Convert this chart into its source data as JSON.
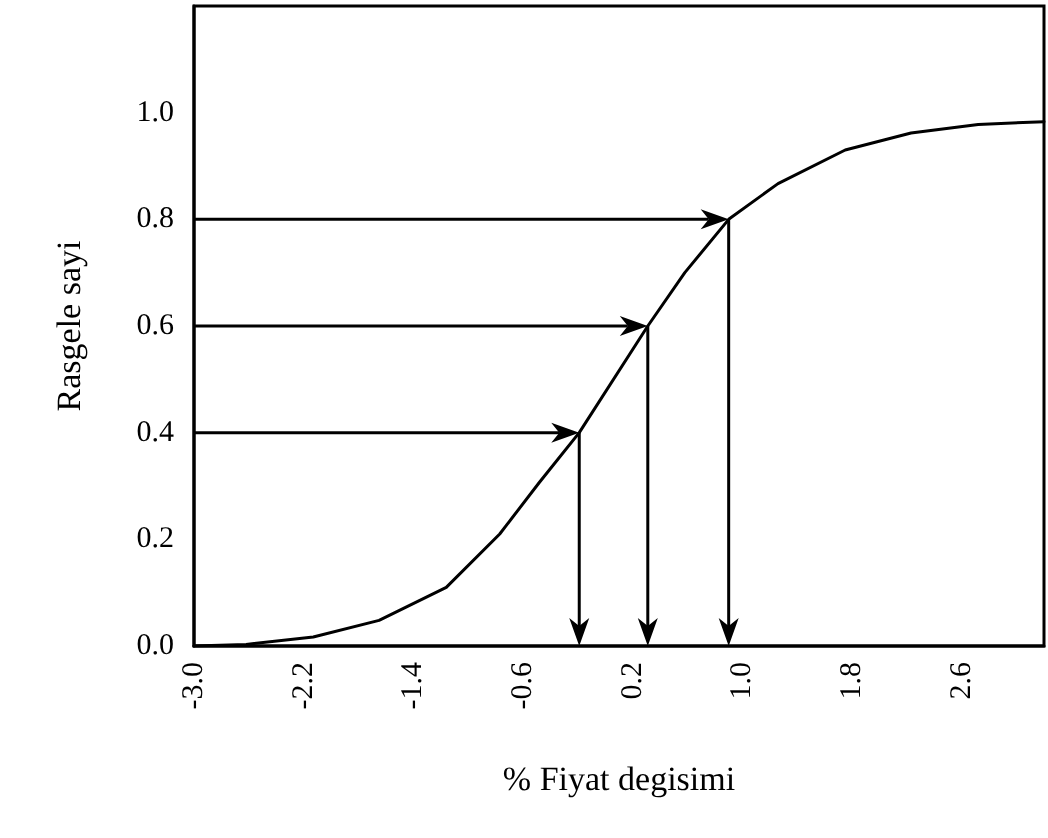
{
  "chart_data": {
    "type": "line",
    "xlabel": "% Fiyat degisimi",
    "ylabel": "Rasgele sayi",
    "xlim": [
      -3,
      3.2
    ],
    "ylim": [
      0,
      1.2
    ],
    "xticks": [
      {
        "value": -3,
        "label": "-3.0"
      },
      {
        "value": -2.2,
        "label": "-2.2"
      },
      {
        "value": -1.4,
        "label": "-1.4"
      },
      {
        "value": -0.6,
        "label": "-0.6"
      },
      {
        "value": 0.2,
        "label": "0.2"
      },
      {
        "value": 1,
        "label": "1.0"
      },
      {
        "value": 1.8,
        "label": "1.8"
      },
      {
        "value": 2.6,
        "label": "2.6"
      }
    ],
    "yticks": [
      {
        "value": 0,
        "label": "0.0"
      },
      0.2,
      0.4,
      0.6,
      0.8,
      {
        "value": 1,
        "label": "1.0"
      }
    ],
    "grid": false,
    "marker": "none",
    "line_style": "solid",
    "series": [
      {
        "color": "#000000",
        "x": [
          -3,
          -2.62,
          -2.13,
          -1.65,
          -1.16,
          -0.77,
          -0.48,
          -0.19,
          0.31,
          0.58,
          0.9,
          1.26,
          1.75,
          2.23,
          2.72,
          3.2
        ],
        "values": [
          0,
          0.003,
          0.017,
          0.048,
          0.11,
          0.21,
          0.307,
          0.4,
          0.6,
          0.7,
          0.8,
          0.867,
          0.93,
          0.962,
          0.978,
          0.983
        ]
      }
    ]
  }
}
